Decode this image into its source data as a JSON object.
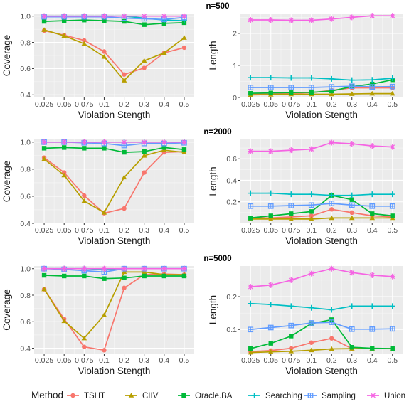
{
  "chart_data": {
    "type": "line",
    "x": [
      "0.025",
      "0.05",
      "0.075",
      "0.1",
      "0.2",
      "0.3",
      "0.4",
      "0.5"
    ],
    "xlabel": "Violation Stength",
    "legend": {
      "title": "Method",
      "position": "bottom",
      "entries": [
        {
          "name": "TSHT",
          "color": "#F8766D",
          "marker": "circle"
        },
        {
          "name": "CIIV",
          "color": "#B79F00",
          "marker": "triangle"
        },
        {
          "name": "Oracle.BA",
          "color": "#00BA38",
          "marker": "square"
        },
        {
          "name": "Searching",
          "color": "#00BFC4",
          "marker": "plus"
        },
        {
          "name": "Sampling",
          "color": "#619CFF",
          "marker": "boxplus"
        },
        {
          "name": "Union",
          "color": "#F564E3",
          "marker": "star"
        }
      ]
    },
    "rows": [
      {
        "title": "n=500",
        "panels": [
          {
            "ylabel": "Coverage",
            "ylim": [
              0.38,
              1.02
            ],
            "yticks": [
              "0.4",
              "0.6",
              "0.8",
              "1.0"
            ],
            "series": [
              {
                "name": "TSHT",
                "values": [
                  0.89,
                  0.855,
                  0.815,
                  0.73,
                  0.555,
                  0.605,
                  0.72,
                  0.76
                ]
              },
              {
                "name": "CIIV",
                "values": [
                  0.895,
                  0.85,
                  0.79,
                  0.69,
                  0.51,
                  0.66,
                  0.72,
                  0.835
                ]
              },
              {
                "name": "Oracle.BA",
                "values": [
                  0.96,
                  0.965,
                  0.97,
                  0.965,
                  0.96,
                  0.935,
                  0.945,
                  0.95
                ]
              },
              {
                "name": "Searching",
                "values": [
                  1.0,
                  1.0,
                  1.0,
                  1.0,
                  1.0,
                  0.985,
                  0.97,
                  0.965
                ]
              },
              {
                "name": "Sampling",
                "values": [
                  0.995,
                  0.995,
                  0.995,
                  0.995,
                  0.985,
                  0.98,
                  0.975,
                  0.99
                ]
              },
              {
                "name": "Union",
                "values": [
                  1.0,
                  1.0,
                  1.0,
                  1.0,
                  1.0,
                  1.0,
                  1.0,
                  1.0
                ]
              }
            ]
          },
          {
            "ylabel": "Length",
            "ylim": [
              0.0,
              2.62
            ],
            "yticks": [
              "0",
              "1",
              "2"
            ],
            "series": [
              {
                "name": "TSHT",
                "values": [
                  0.1,
                  0.12,
                  0.13,
                  0.15,
                  0.22,
                  0.3,
                  0.3,
                  0.3
                ]
              },
              {
                "name": "CIIV",
                "values": [
                  0.08,
                  0.09,
                  0.1,
                  0.1,
                  0.1,
                  0.11,
                  0.12,
                  0.12
                ]
              },
              {
                "name": "Oracle.BA",
                "values": [
                  0.13,
                  0.14,
                  0.15,
                  0.16,
                  0.2,
                  0.34,
                  0.42,
                  0.55
                ]
              },
              {
                "name": "Searching",
                "values": [
                  0.62,
                  0.62,
                  0.61,
                  0.61,
                  0.58,
                  0.54,
                  0.55,
                  0.6
                ]
              },
              {
                "name": "Sampling",
                "values": [
                  0.31,
                  0.31,
                  0.31,
                  0.31,
                  0.33,
                  0.35,
                  0.33,
                  0.34
                ]
              },
              {
                "name": "Union",
                "values": [
                  2.42,
                  2.42,
                  2.41,
                  2.41,
                  2.45,
                  2.5,
                  2.55,
                  2.55
                ]
              }
            ]
          }
        ]
      },
      {
        "title": "n=2000",
        "panels": [
          {
            "ylabel": "Coverage",
            "ylim": [
              0.4,
              1.02
            ],
            "yticks": [
              "0.4",
              "0.6",
              "0.8",
              "1.0"
            ],
            "series": [
              {
                "name": "TSHT",
                "values": [
                  0.885,
                  0.775,
                  0.605,
                  0.475,
                  0.51,
                  0.775,
                  0.925,
                  0.93
                ]
              },
              {
                "name": "CIIV",
                "values": [
                  0.875,
                  0.755,
                  0.565,
                  0.48,
                  0.74,
                  0.9,
                  0.94,
                  0.925
                ]
              },
              {
                "name": "Oracle.BA",
                "values": [
                  0.955,
                  0.96,
                  0.955,
                  0.955,
                  0.925,
                  0.93,
                  0.96,
                  0.945
                ]
              },
              {
                "name": "Searching",
                "values": [
                  1.0,
                  1.0,
                  1.0,
                  1.0,
                  1.0,
                  1.0,
                  1.0,
                  1.0
                ]
              },
              {
                "name": "Sampling",
                "values": [
                  1.0,
                  1.0,
                  0.995,
                  0.99,
                  0.975,
                  0.99,
                  0.99,
                  0.995
                ]
              },
              {
                "name": "Union",
                "values": [
                  1.0,
                  1.0,
                  1.0,
                  1.0,
                  1.0,
                  1.0,
                  1.0,
                  1.0
                ]
              }
            ]
          },
          {
            "ylabel": "Length",
            "ylim": [
              0.0,
              0.78
            ],
            "yticks": [
              "0.2",
              "0.4",
              "0.6"
            ],
            "series": [
              {
                "name": "TSHT",
                "values": [
                  0.05,
                  0.05,
                  0.06,
                  0.07,
                  0.13,
                  0.1,
                  0.07,
                  0.06
                ]
              },
              {
                "name": "CIIV",
                "values": [
                  0.04,
                  0.04,
                  0.04,
                  0.04,
                  0.05,
                  0.05,
                  0.05,
                  0.05
                ]
              },
              {
                "name": "Oracle.BA",
                "values": [
                  0.05,
                  0.07,
                  0.09,
                  0.11,
                  0.26,
                  0.22,
                  0.09,
                  0.07
                ]
              },
              {
                "name": "Searching",
                "values": [
                  0.28,
                  0.28,
                  0.27,
                  0.27,
                  0.26,
                  0.26,
                  0.27,
                  0.27
                ]
              },
              {
                "name": "Sampling",
                "values": [
                  0.16,
                  0.16,
                  0.165,
                  0.17,
                  0.185,
                  0.17,
                  0.16,
                  0.16
                ]
              },
              {
                "name": "Union",
                "values": [
                  0.67,
                  0.67,
                  0.68,
                  0.69,
                  0.75,
                  0.74,
                  0.72,
                  0.71
                ]
              }
            ]
          }
        ]
      },
      {
        "title": "n=5000",
        "panels": [
          {
            "ylabel": "Coverage",
            "ylim": [
              0.36,
              1.02
            ],
            "yticks": [
              "0.4",
              "0.6",
              "0.8",
              "1.0"
            ],
            "series": [
              {
                "name": "TSHT",
                "values": [
                  0.845,
                  0.62,
                  0.41,
                  0.385,
                  0.855,
                  0.955,
                  0.96,
                  0.955
                ]
              },
              {
                "name": "CIIV",
                "values": [
                  0.845,
                  0.605,
                  0.475,
                  0.65,
                  0.975,
                  0.975,
                  0.955,
                  0.955
                ]
              },
              {
                "name": "Oracle.BA",
                "values": [
                  0.95,
                  0.945,
                  0.945,
                  0.925,
                  0.93,
                  0.945,
                  0.945,
                  0.945
                ]
              },
              {
                "name": "Searching",
                "values": [
                  1.0,
                  1.0,
                  1.0,
                  0.995,
                  1.0,
                  1.0,
                  1.0,
                  1.0
                ]
              },
              {
                "name": "Sampling",
                "values": [
                  1.0,
                  0.995,
                  0.985,
                  0.975,
                  1.0,
                  1.0,
                  1.0,
                  1.0
                ]
              },
              {
                "name": "Union",
                "values": [
                  1.0,
                  1.0,
                  1.0,
                  1.0,
                  1.0,
                  1.0,
                  1.0,
                  1.0
                ]
              }
            ]
          },
          {
            "ylabel": "Length",
            "ylim": [
              0.027,
              0.293
            ],
            "yticks": [
              "0.1",
              "0.2"
            ],
            "series": [
              {
                "name": "TSHT",
                "values": [
                  0.033,
                  0.036,
                  0.043,
                  0.06,
                  0.073,
                  0.042,
                  0.042,
                  0.042
                ]
              },
              {
                "name": "CIIV",
                "values": [
                  0.03,
                  0.032,
                  0.034,
                  0.037,
                  0.041,
                  0.042,
                  0.042,
                  0.042
                ]
              },
              {
                "name": "Oracle.BA",
                "values": [
                  0.042,
                  0.058,
                  0.08,
                  0.118,
                  0.13,
                  0.046,
                  0.043,
                  0.042
                ]
              },
              {
                "name": "Searching",
                "values": [
                  0.179,
                  0.176,
                  0.171,
                  0.166,
                  0.16,
                  0.171,
                  0.171,
                  0.171
                ]
              },
              {
                "name": "Sampling",
                "values": [
                  0.1,
                  0.106,
                  0.112,
                  0.12,
                  0.122,
                  0.101,
                  0.101,
                  0.102
                ]
              },
              {
                "name": "Union",
                "values": [
                  0.23,
                  0.235,
                  0.25,
                  0.27,
                  0.285,
                  0.273,
                  0.265,
                  0.261
                ]
              }
            ]
          }
        ]
      }
    ]
  }
}
